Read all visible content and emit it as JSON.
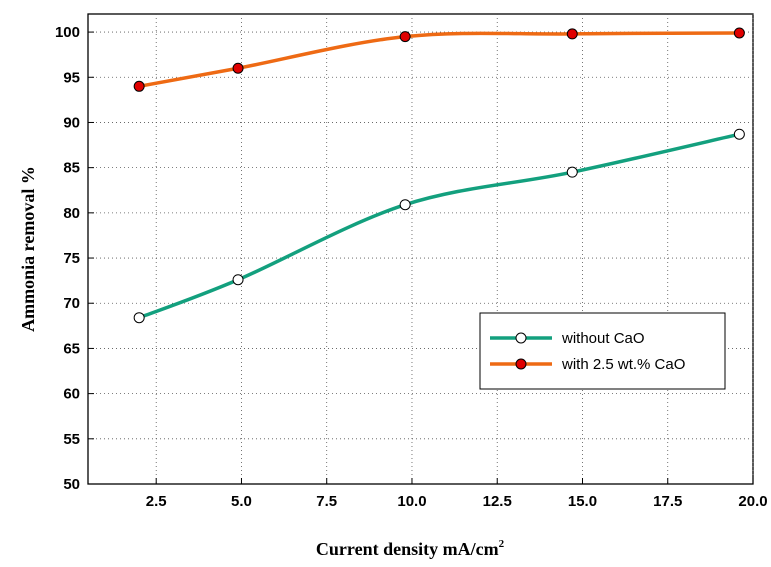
{
  "chart_data": {
    "type": "line",
    "xlabel": "Current density mA/cm",
    "xlabel_sup": "2",
    "ylabel": "Ammonia removal %",
    "xlim": [
      0.5,
      20.0
    ],
    "ylim": [
      50,
      102
    ],
    "xticks": [
      2.5,
      5.0,
      7.5,
      10.0,
      12.5,
      15.0,
      17.5,
      20.0
    ],
    "xtick_labels": [
      "2.5",
      "5.0",
      "7.5",
      "10.0",
      "12.5",
      "15.0",
      "17.5",
      "20.0"
    ],
    "yticks": [
      50,
      55,
      60,
      65,
      70,
      75,
      80,
      85,
      90,
      95,
      100
    ],
    "ytick_labels": [
      "50",
      "55",
      "60",
      "65",
      "70",
      "75",
      "80",
      "85",
      "90",
      "95",
      "100"
    ],
    "grid": "dotted",
    "legend_position": "right",
    "series": [
      {
        "name": "without CaO",
        "color": "#13a07e",
        "marker_fill": "#ffffff",
        "x": [
          2.0,
          4.9,
          9.8,
          14.7,
          19.6
        ],
        "y": [
          68.4,
          72.6,
          80.9,
          84.5,
          88.7
        ]
      },
      {
        "name": "with 2.5 wt.% CaO",
        "color": "#ee6a14",
        "marker_fill": "#e00000",
        "x": [
          2.0,
          4.9,
          9.8,
          14.7,
          19.6
        ],
        "y": [
          94.0,
          96.0,
          99.5,
          99.8,
          99.9
        ]
      }
    ]
  }
}
